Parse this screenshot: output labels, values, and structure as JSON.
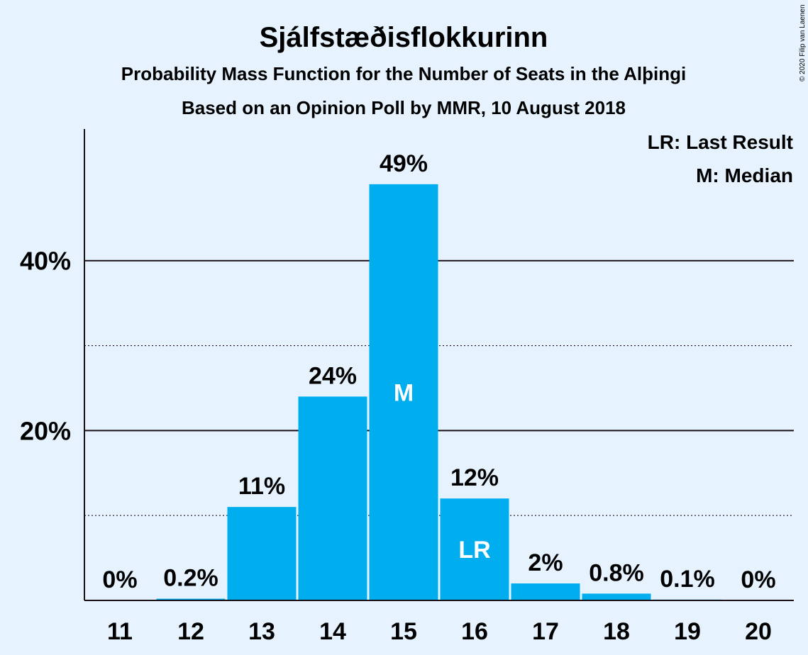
{
  "title": "Sjálfstæðisflokkurinn",
  "subtitle": "Probability Mass Function for the Number of Seats in the Alþingi",
  "subtitle2": "Based on an Opinion Poll by MMR, 10 August 2018",
  "legend": {
    "last_result": "LR: Last Result",
    "median": "M: Median"
  },
  "copyright": "© 2020 Filip van Laenen",
  "colors": {
    "background": "#e6f3fe",
    "bar": "#00aeef",
    "text": "#1a0f14"
  },
  "chart_data": {
    "type": "bar",
    "categories": [
      "11",
      "12",
      "13",
      "14",
      "15",
      "16",
      "17",
      "18",
      "19",
      "20"
    ],
    "values": [
      0,
      0.2,
      11,
      24,
      49,
      12,
      2,
      0.8,
      0.1,
      0
    ],
    "labels": [
      "0%",
      "0.2%",
      "11%",
      "24%",
      "49%",
      "12%",
      "2%",
      "0.8%",
      "0.1%",
      "0%"
    ],
    "bar_markers": {
      "15": "M",
      "16": "LR"
    },
    "y_ticks": [
      {
        "value": 20,
        "label": "20%"
      },
      {
        "value": 40,
        "label": "40%"
      }
    ],
    "minor_gridlines": [
      10,
      30
    ],
    "ylim": [
      0,
      55.5
    ],
    "grid": true,
    "legend_position": "top-right"
  }
}
